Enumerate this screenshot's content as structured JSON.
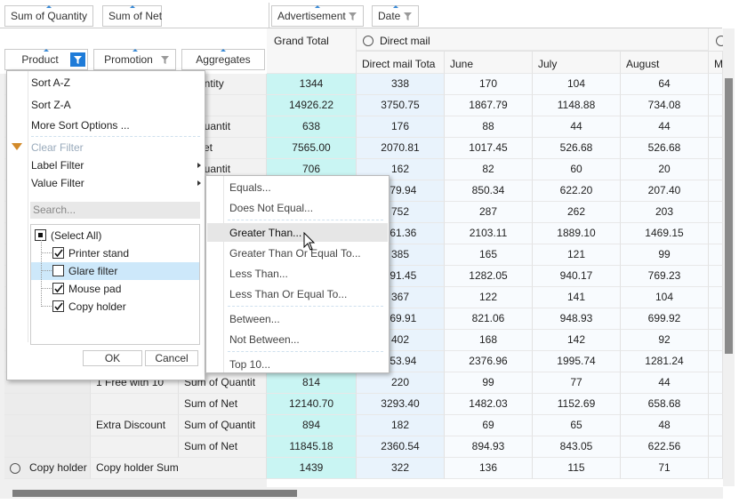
{
  "filter_fields": [
    "Sum of Quantity",
    "Sum of Net"
  ],
  "column_fields": [
    "Advertisement",
    "Date"
  ],
  "row_fields": [
    "Product",
    "Promotion",
    "Aggregates"
  ],
  "header": {
    "grand_total": "Grand Total",
    "group": "Direct mail",
    "columns": [
      "Direct mail Tota",
      "June",
      "July",
      "August",
      "M"
    ]
  },
  "rows": [
    [
      null,
      null,
      "Quantity",
      "1344",
      "338",
      "170",
      "104",
      "64"
    ],
    [
      null,
      null,
      "et",
      "14926.22",
      "3750.75",
      "1867.79",
      "1148.88",
      "734.08"
    ],
    [
      null,
      null,
      "of Quantit",
      "638",
      "176",
      "88",
      "44",
      "44"
    ],
    [
      null,
      null,
      "of Net",
      "7565.00",
      "2070.81",
      "1017.45",
      "526.68",
      "526.68"
    ],
    [
      null,
      null,
      "of Quantit",
      "706",
      "162",
      "82",
      "60",
      "20"
    ],
    [
      null,
      null,
      null,
      null,
      "579.94",
      "850.34",
      "622.20",
      "207.40"
    ],
    [
      null,
      null,
      null,
      null,
      "752",
      "287",
      "262",
      "203"
    ],
    [
      null,
      null,
      null,
      null,
      "461.36",
      "2103.11",
      "1889.10",
      "1469.15"
    ],
    [
      null,
      null,
      null,
      null,
      "385",
      "165",
      "121",
      "99"
    ],
    [
      null,
      null,
      null,
      null,
      "991.45",
      "1282.05",
      "940.17",
      "769.23"
    ],
    [
      null,
      null,
      null,
      null,
      "367",
      "122",
      "141",
      "104"
    ],
    [
      null,
      null,
      null,
      null,
      "469.91",
      "821.06",
      "948.93",
      "699.92"
    ],
    [
      null,
      null,
      null,
      null,
      "402",
      "168",
      "142",
      "92"
    ],
    [
      null,
      null,
      null,
      null,
      "353.94",
      "2376.96",
      "1995.74",
      "1281.24"
    ],
    [
      null,
      "1 Free with 10",
      "Sum of Quantit",
      "814",
      "220",
      "99",
      "77",
      "44"
    ],
    [
      null,
      null,
      "Sum of Net",
      "12140.70",
      "3293.40",
      "1482.03",
      "1152.69",
      "658.68"
    ],
    [
      null,
      "Extra Discount",
      "Sum of Quantit",
      "894",
      "182",
      "69",
      "65",
      "48"
    ],
    [
      null,
      null,
      "Sum of Net",
      "11845.18",
      "2360.54",
      "894.93",
      "843.05",
      "622.56"
    ],
    [
      "Copy holder",
      "Copy holder Sum of Quantity",
      null,
      "1439",
      "322",
      "136",
      "115",
      "71"
    ]
  ],
  "filter_menu": {
    "sort": [
      "Sort A-Z",
      "Sort Z-A",
      "More Sort Options ..."
    ],
    "filters": [
      "Clear Filter",
      "Label Filter",
      "Value Filter"
    ],
    "search": "Search...",
    "items": [
      {
        "label": "(Select All)",
        "state": "partial"
      },
      {
        "label": "Printer stand",
        "state": "checked"
      },
      {
        "label": "Glare filter",
        "state": "unchecked"
      },
      {
        "label": "Mouse pad",
        "state": "checked"
      },
      {
        "label": "Copy holder",
        "state": "checked"
      }
    ],
    "ok": "OK",
    "cancel": "Cancel"
  },
  "value_filter_menu": [
    [
      "Equals...",
      "Does Not Equal..."
    ],
    [
      "Greater Than...",
      "Greater Than Or Equal To...",
      "Less Than...",
      "Less Than Or Equal To..."
    ],
    [
      "Between...",
      "Not Between..."
    ],
    [
      "Top 10..."
    ]
  ]
}
